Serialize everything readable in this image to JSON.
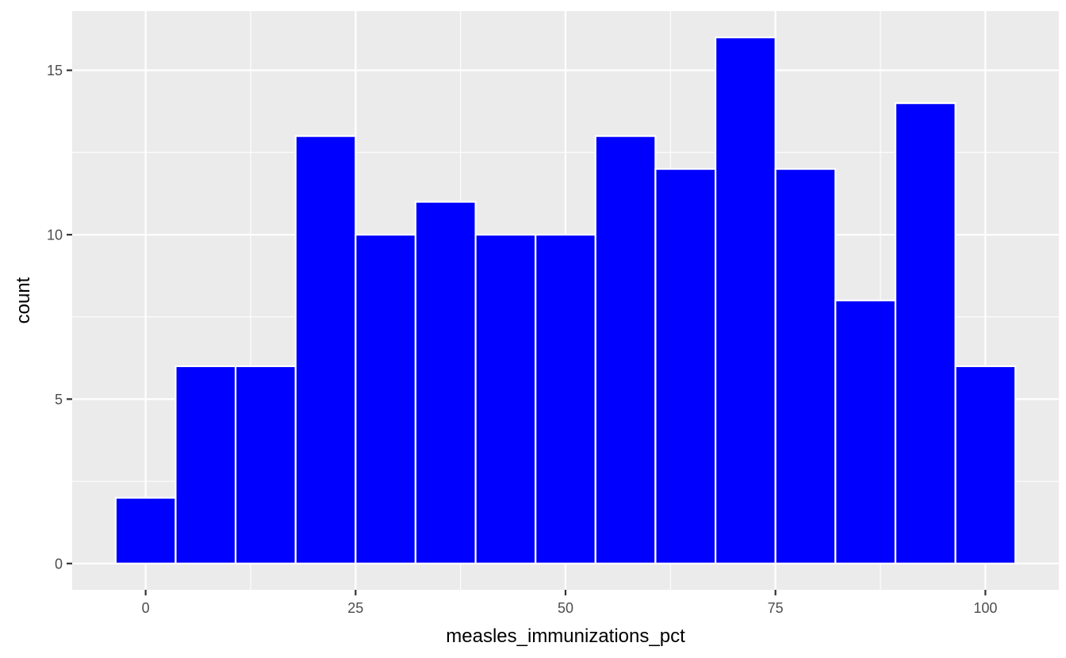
{
  "chart_data": {
    "type": "bar",
    "subtype": "histogram",
    "title": "",
    "xlabel": "measles_immunizations_pct",
    "ylabel": "count",
    "bin_width": 7.143,
    "bins": [
      {
        "x0": -3.57,
        "x1": 3.57,
        "count": 2
      },
      {
        "x0": 3.57,
        "x1": 10.71,
        "count": 6
      },
      {
        "x0": 10.71,
        "x1": 17.86,
        "count": 6
      },
      {
        "x0": 17.86,
        "x1": 25.0,
        "count": 13
      },
      {
        "x0": 25.0,
        "x1": 32.14,
        "count": 10
      },
      {
        "x0": 32.14,
        "x1": 39.29,
        "count": 11
      },
      {
        "x0": 39.29,
        "x1": 46.43,
        "count": 10
      },
      {
        "x0": 46.43,
        "x1": 53.57,
        "count": 10
      },
      {
        "x0": 53.57,
        "x1": 60.71,
        "count": 13
      },
      {
        "x0": 60.71,
        "x1": 67.86,
        "count": 12
      },
      {
        "x0": 67.86,
        "x1": 75.0,
        "count": 16
      },
      {
        "x0": 75.0,
        "x1": 82.14,
        "count": 12
      },
      {
        "x0": 82.14,
        "x1": 89.29,
        "count": 8
      },
      {
        "x0": 89.29,
        "x1": 96.43,
        "count": 14
      },
      {
        "x0": 96.43,
        "x1": 103.57,
        "count": 6
      }
    ],
    "xlim": [
      -8.75,
      108.75
    ],
    "ylim": [
      -0.8,
      16.8
    ],
    "x_ticks": [
      0,
      25,
      50,
      75,
      100
    ],
    "x_tick_labels": [
      "0",
      "25",
      "50",
      "75",
      "100"
    ],
    "y_ticks": [
      0,
      5,
      10,
      15
    ],
    "y_tick_labels": [
      "0",
      "5",
      "10",
      "15"
    ],
    "grid": true,
    "legend": "none",
    "colors": {
      "bar_fill": "#0000ff",
      "bar_outline": "#ffffff",
      "panel_background": "#ebebeb",
      "grid": "#ffffff"
    }
  }
}
